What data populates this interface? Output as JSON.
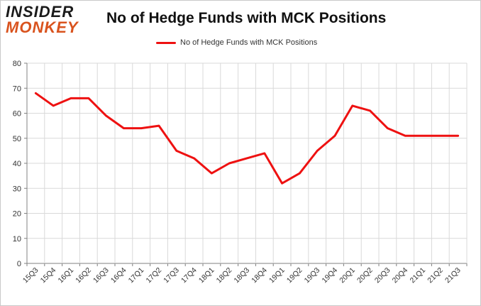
{
  "brand": {
    "line1": "INSIDER",
    "line2": "MONKEY"
  },
  "colors": {
    "series": "#ee1111",
    "grid": "#d9d9d9",
    "axis": "#808080"
  },
  "chart_data": {
    "type": "line",
    "title": "No of Hedge Funds with MCK Positions",
    "xlabel": "",
    "ylabel": "",
    "ylim": [
      0,
      80
    ],
    "yticks": [
      0,
      10,
      20,
      30,
      40,
      50,
      60,
      70,
      80
    ],
    "grid": true,
    "legend_position": "top-center",
    "categories": [
      "15Q3",
      "15Q4",
      "16Q1",
      "16Q2",
      "16Q3",
      "16Q4",
      "17Q1",
      "17Q2",
      "17Q3",
      "17Q4",
      "18Q1",
      "18Q2",
      "18Q3",
      "18Q4",
      "19Q1",
      "19Q2",
      "19Q3",
      "19Q4",
      "20Q1",
      "20Q2",
      "20Q3",
      "20Q4",
      "21Q1",
      "21Q2",
      "21Q3"
    ],
    "series": [
      {
        "name": "No of Hedge Funds with MCK Positions",
        "values": [
          68,
          63,
          66,
          66,
          59,
          54,
          54,
          55,
          45,
          42,
          36,
          40,
          42,
          44,
          32,
          36,
          45,
          51,
          63,
          61,
          54,
          51,
          51,
          51,
          51
        ]
      }
    ]
  }
}
